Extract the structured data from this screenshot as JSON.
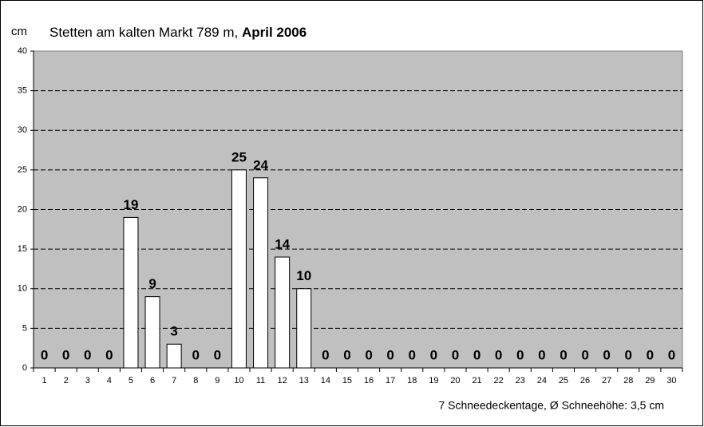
{
  "chart_data": {
    "type": "bar",
    "title": "Stetten am kalten Markt 789 m,",
    "title_bold": "April 2006",
    "y_label": "cm",
    "footnote": "7 Schneedeckentage, Ø Schneehöhe:  3,5 cm",
    "categories": [
      "1",
      "2",
      "3",
      "4",
      "5",
      "6",
      "7",
      "8",
      "9",
      "10",
      "11",
      "12",
      "13",
      "14",
      "15",
      "16",
      "17",
      "18",
      "19",
      "20",
      "21",
      "22",
      "23",
      "24",
      "25",
      "26",
      "27",
      "28",
      "29",
      "30"
    ],
    "values": [
      0,
      0,
      0,
      0,
      19,
      9,
      3,
      0,
      0,
      25,
      24,
      14,
      10,
      0,
      0,
      0,
      0,
      0,
      0,
      0,
      0,
      0,
      0,
      0,
      0,
      0,
      0,
      0,
      0,
      0
    ],
    "color": "#ffffff",
    "background": "#c0c0c0",
    "ylim": [
      0,
      40
    ],
    "yticks": [
      0,
      5,
      10,
      15,
      20,
      25,
      30,
      35,
      40
    ],
    "grid": true
  }
}
